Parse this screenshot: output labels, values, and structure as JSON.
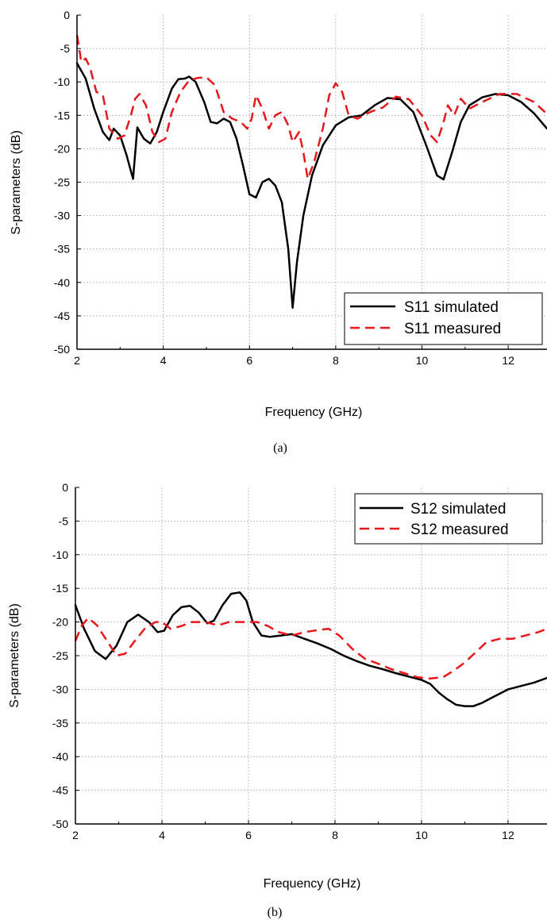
{
  "chart_data": [
    {
      "type": "line",
      "caption": "(a)",
      "xlabel": "Frequency (GHz)",
      "ylabel": "S-parameters  (dB)",
      "xlim": [
        2,
        12.9
      ],
      "ylim": [
        -50,
        0
      ],
      "xticks": [
        2,
        4,
        6,
        8,
        10,
        12
      ],
      "yticks": [
        0,
        -5,
        -10,
        -15,
        -20,
        -25,
        -30,
        -35,
        -40,
        -45,
        -50
      ],
      "grid": true,
      "legend_position": "bottom-right",
      "series": [
        {
          "name": "S11 simulated",
          "color": "#000000",
          "style": "solid",
          "x": [
            2.0,
            2.2,
            2.4,
            2.6,
            2.75,
            2.85,
            3.0,
            3.15,
            3.3,
            3.4,
            3.55,
            3.7,
            3.85,
            4.0,
            4.2,
            4.35,
            4.5,
            4.6,
            4.75,
            4.95,
            5.1,
            5.25,
            5.4,
            5.55,
            5.7,
            5.85,
            6.0,
            6.15,
            6.3,
            6.45,
            6.6,
            6.75,
            6.9,
            7.0,
            7.1,
            7.25,
            7.45,
            7.7,
            8.0,
            8.3,
            8.6,
            8.9,
            9.2,
            9.5,
            9.8,
            10.1,
            10.35,
            10.5,
            10.7,
            10.9,
            11.1,
            11.4,
            11.7,
            12.0,
            12.3,
            12.6,
            12.9
          ],
          "y": [
            -7.2,
            -9.5,
            -14.0,
            -17.5,
            -18.7,
            -17.0,
            -18.0,
            -21.0,
            -24.5,
            -16.8,
            -18.5,
            -19.2,
            -17.5,
            -14.5,
            -11.0,
            -9.6,
            -9.5,
            -9.2,
            -10.0,
            -13.0,
            -16.0,
            -16.2,
            -15.5,
            -16.0,
            -18.5,
            -22.5,
            -26.8,
            -27.3,
            -25.0,
            -24.5,
            -25.5,
            -28.0,
            -35.0,
            -43.8,
            -37.0,
            -30.0,
            -24.0,
            -19.5,
            -16.5,
            -15.3,
            -15.0,
            -13.5,
            -12.4,
            -12.6,
            -14.5,
            -19.5,
            -24.0,
            -24.6,
            -20.5,
            -16.0,
            -13.5,
            -12.3,
            -11.8,
            -12.0,
            -13.0,
            -14.7,
            -17.0
          ]
        },
        {
          "name": "S11 measured",
          "color": "#e8171c",
          "style": "dashed",
          "x": [
            2.0,
            2.1,
            2.2,
            2.3,
            2.45,
            2.6,
            2.75,
            2.95,
            3.1,
            3.25,
            3.35,
            3.45,
            3.6,
            3.75,
            3.9,
            4.05,
            4.2,
            4.4,
            4.6,
            4.8,
            5.0,
            5.2,
            5.4,
            5.6,
            5.8,
            5.95,
            6.05,
            6.15,
            6.3,
            6.45,
            6.6,
            6.75,
            6.9,
            7.0,
            7.15,
            7.25,
            7.35,
            7.5,
            7.7,
            7.85,
            8.0,
            8.15,
            8.3,
            8.5,
            8.8,
            9.1,
            9.4,
            9.7,
            10.0,
            10.2,
            10.35,
            10.5,
            10.6,
            10.75,
            10.9,
            11.1,
            11.4,
            11.8,
            12.2,
            12.6,
            12.9
          ],
          "y": [
            -3.0,
            -7.0,
            -6.5,
            -7.8,
            -11.5,
            -12.0,
            -17.0,
            -18.5,
            -18.0,
            -15.0,
            -12.5,
            -11.8,
            -13.5,
            -17.5,
            -19.0,
            -18.5,
            -14.5,
            -11.5,
            -9.8,
            -9.4,
            -9.3,
            -10.5,
            -14.5,
            -15.5,
            -16.0,
            -17.0,
            -15.5,
            -12.0,
            -14.0,
            -17.0,
            -15.0,
            -14.5,
            -16.5,
            -19.0,
            -17.5,
            -20.5,
            -24.5,
            -22.0,
            -17.0,
            -12.0,
            -10.2,
            -11.5,
            -15.0,
            -15.5,
            -14.5,
            -13.8,
            -12.2,
            -12.6,
            -15.0,
            -18.0,
            -19.0,
            -16.0,
            -13.5,
            -15.0,
            -12.5,
            -14.0,
            -13.0,
            -11.8,
            -11.8,
            -13.0,
            -14.8
          ]
        }
      ]
    },
    {
      "type": "line",
      "caption": "(b)",
      "xlabel": "Frequency (GHz)",
      "ylabel": "S-parameters  (dB)",
      "xlim": [
        2,
        12.9
      ],
      "ylim": [
        -50,
        0
      ],
      "xticks": [
        2,
        4,
        6,
        8,
        10,
        12
      ],
      "yticks": [
        0,
        -5,
        -10,
        -15,
        -20,
        -25,
        -30,
        -35,
        -40,
        -45,
        -50
      ],
      "grid": true,
      "legend_position": "top-right",
      "series": [
        {
          "name": "S12 simulated",
          "color": "#000000",
          "style": "solid",
          "x": [
            2.0,
            2.2,
            2.45,
            2.7,
            2.95,
            3.2,
            3.45,
            3.7,
            3.9,
            4.05,
            4.25,
            4.45,
            4.65,
            4.85,
            5.05,
            5.2,
            5.4,
            5.6,
            5.8,
            5.95,
            6.1,
            6.3,
            6.5,
            6.75,
            7.0,
            7.3,
            7.6,
            7.9,
            8.2,
            8.5,
            8.8,
            9.1,
            9.4,
            9.7,
            10.0,
            10.2,
            10.4,
            10.6,
            10.8,
            11.0,
            11.2,
            11.4,
            11.7,
            12.0,
            12.3,
            12.6,
            12.9
          ],
          "y": [
            -17.5,
            -21.0,
            -24.3,
            -25.5,
            -23.5,
            -20.0,
            -18.9,
            -20.0,
            -21.5,
            -21.3,
            -19.0,
            -17.8,
            -17.6,
            -18.6,
            -20.2,
            -19.8,
            -17.5,
            -15.8,
            -15.6,
            -16.8,
            -20.0,
            -22.0,
            -22.2,
            -22.0,
            -21.8,
            -22.5,
            -23.2,
            -24.0,
            -25.0,
            -25.8,
            -26.5,
            -27.0,
            -27.6,
            -28.1,
            -28.6,
            -29.2,
            -30.5,
            -31.5,
            -32.3,
            -32.5,
            -32.5,
            -32.0,
            -31.0,
            -30.0,
            -29.5,
            -29.0,
            -28.3
          ]
        },
        {
          "name": "S12 measured",
          "color": "#e8171c",
          "style": "dashed",
          "x": [
            2.0,
            2.15,
            2.3,
            2.5,
            2.75,
            2.95,
            3.15,
            3.35,
            3.6,
            3.85,
            4.0,
            4.2,
            4.45,
            4.7,
            5.0,
            5.3,
            5.55,
            5.8,
            6.0,
            6.2,
            6.45,
            6.7,
            7.0,
            7.3,
            7.6,
            7.85,
            8.1,
            8.4,
            8.7,
            9.0,
            9.3,
            9.6,
            9.9,
            10.2,
            10.5,
            10.75,
            11.0,
            11.25,
            11.5,
            11.8,
            12.1,
            12.4,
            12.7,
            12.9
          ],
          "y": [
            -22.8,
            -20.5,
            -19.4,
            -20.5,
            -23.0,
            -25.0,
            -24.7,
            -23.0,
            -21.0,
            -20.0,
            -20.0,
            -21.0,
            -20.6,
            -20.0,
            -20.0,
            -20.5,
            -20.0,
            -20.0,
            -20.0,
            -20.0,
            -20.6,
            -21.5,
            -22.0,
            -21.5,
            -21.2,
            -21.0,
            -22.0,
            -24.0,
            -25.5,
            -26.2,
            -27.0,
            -27.6,
            -28.2,
            -28.4,
            -28.2,
            -27.2,
            -26.0,
            -24.5,
            -23.0,
            -22.5,
            -22.5,
            -22.0,
            -21.5,
            -21.0
          ]
        }
      ]
    }
  ]
}
